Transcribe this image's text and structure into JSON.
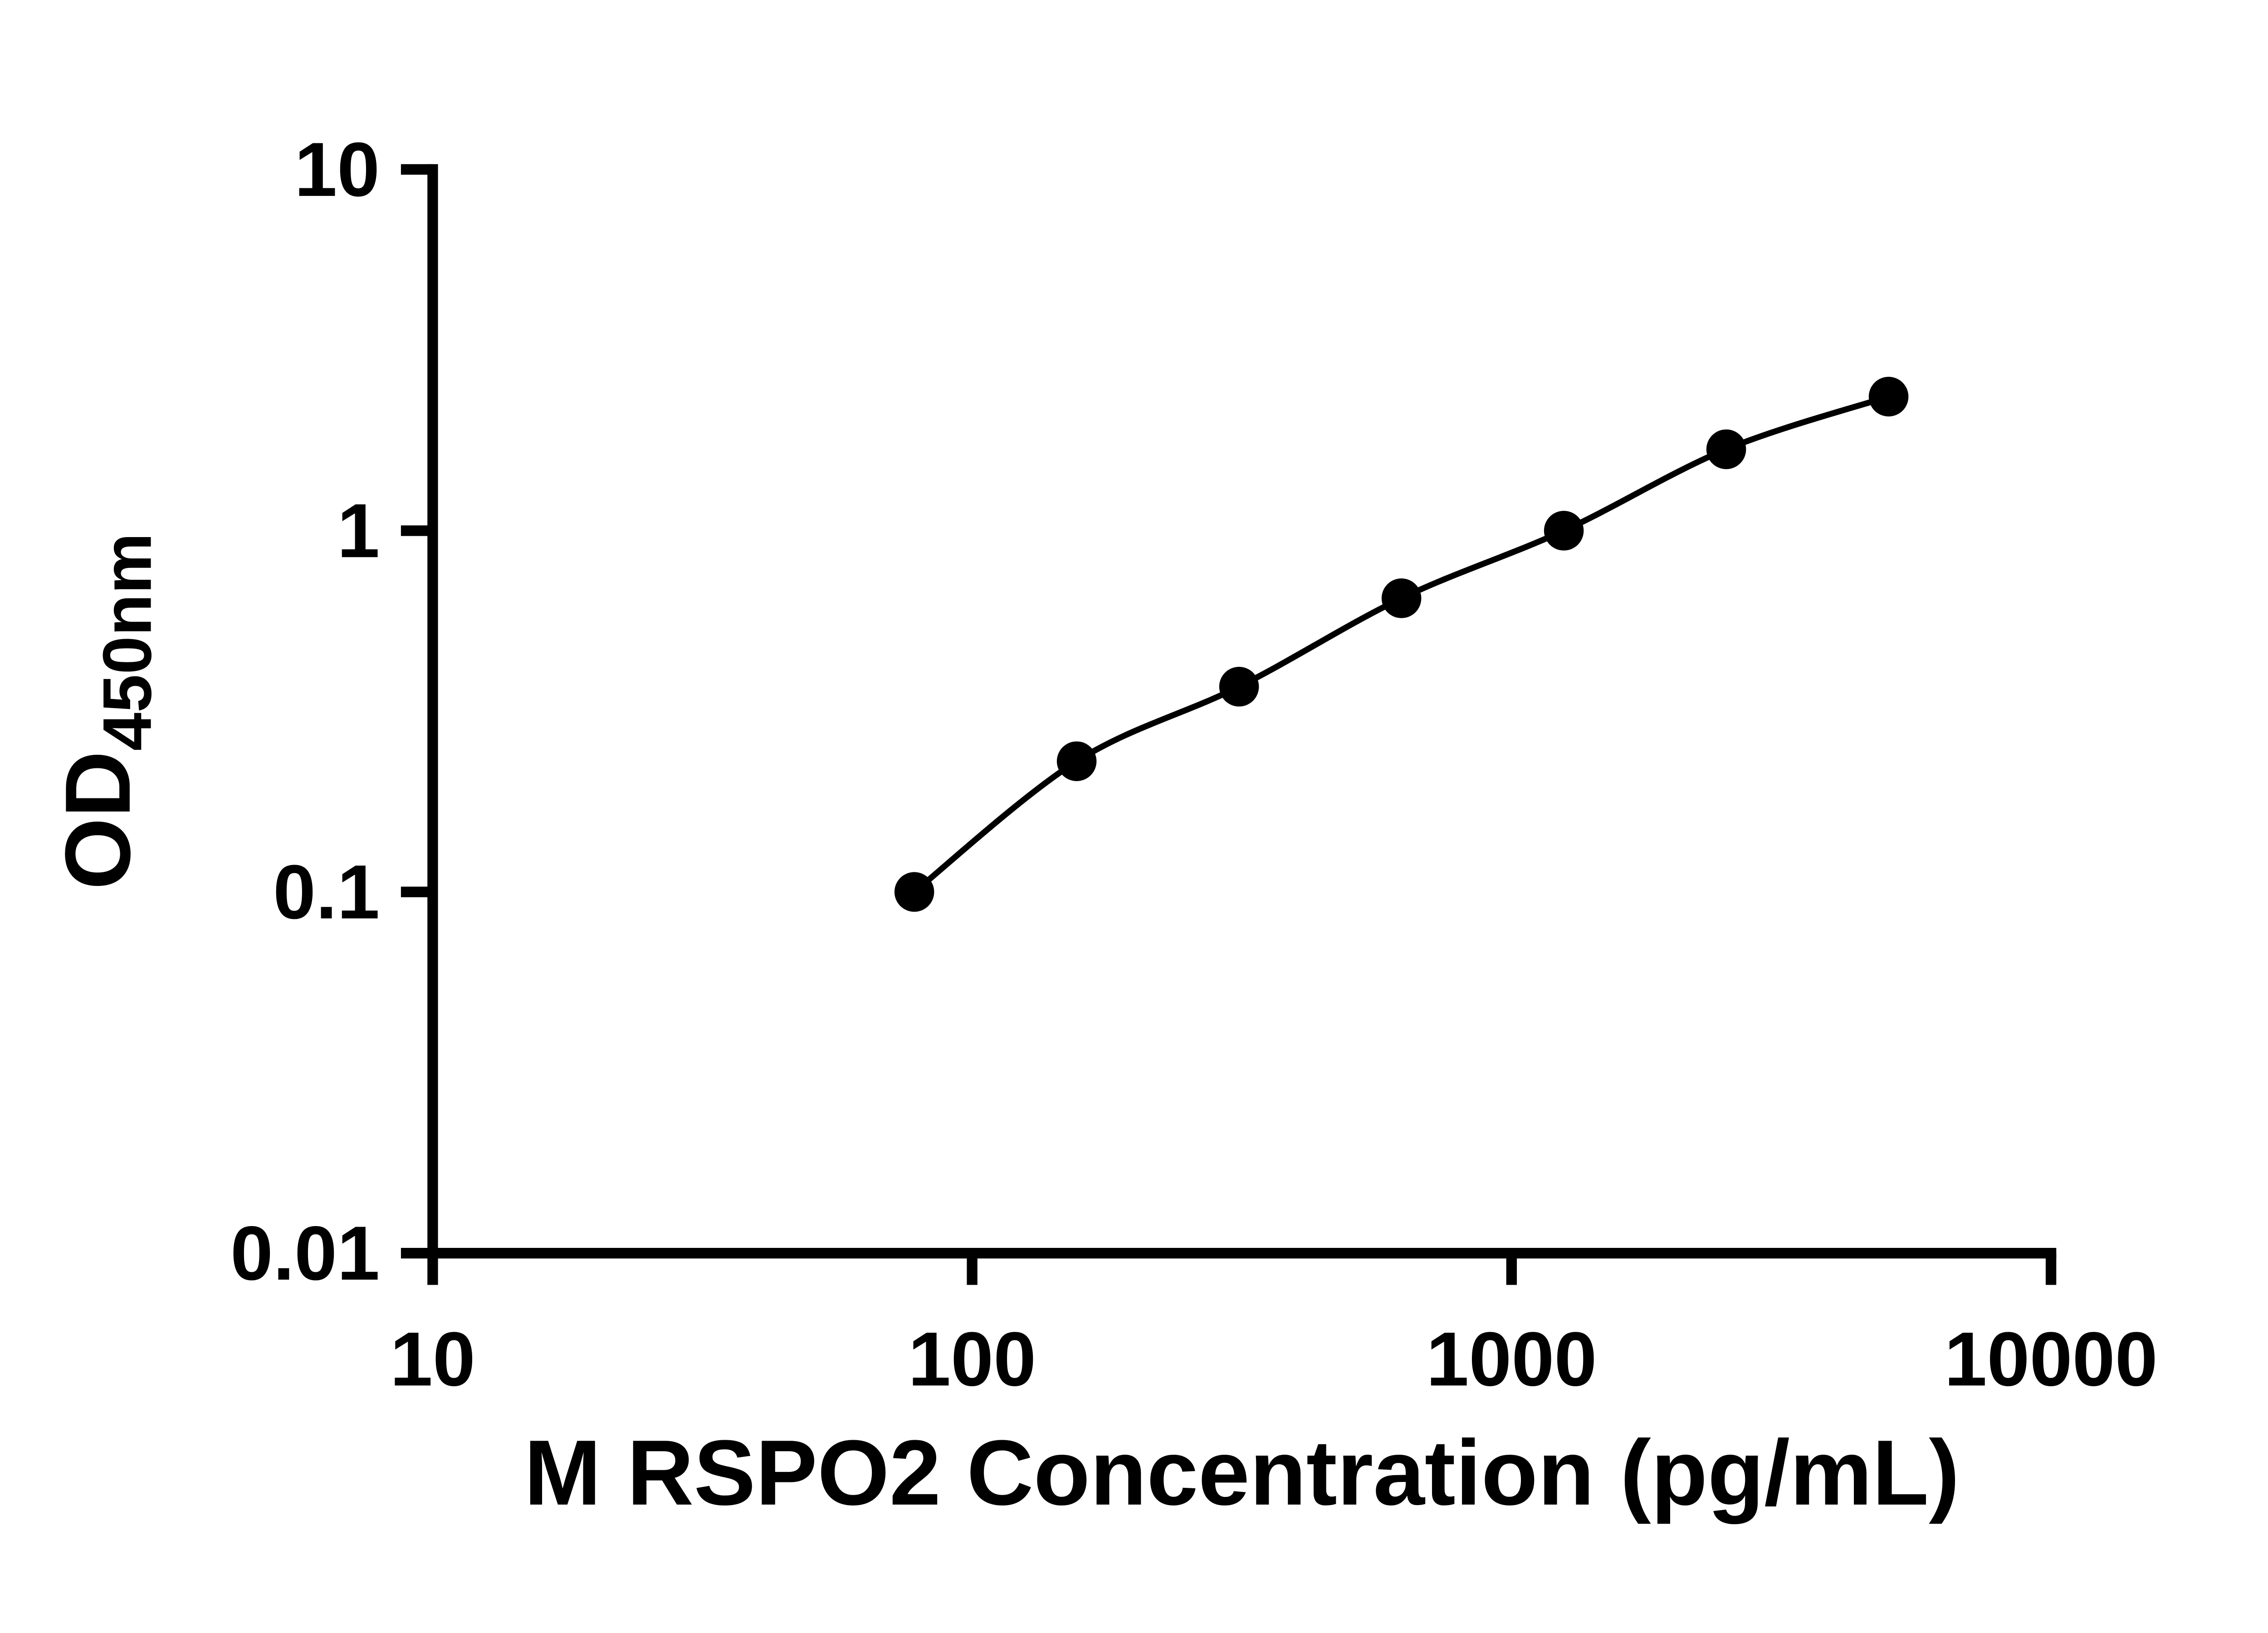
{
  "chart_data": {
    "type": "scatter",
    "title": "",
    "xlabel": "M RSPO2 Concentration (pg/mL)",
    "ylabel": "OD",
    "ylabel_subscript": "450nm",
    "x_scale": "log",
    "y_scale": "log",
    "xlim": [
      10,
      10000
    ],
    "ylim": [
      0.01,
      10
    ],
    "x_ticks": [
      10,
      100,
      1000,
      10000
    ],
    "x_tick_labels": [
      "10",
      "100",
      "1000",
      "10000"
    ],
    "y_ticks": [
      0.01,
      0.1,
      1,
      10
    ],
    "y_tick_labels": [
      "0.01",
      "0.1",
      "1",
      "10"
    ],
    "x": [
      78.13,
      156.25,
      312.5,
      625,
      1250,
      2500,
      5000
    ],
    "y": [
      0.1,
      0.23,
      0.37,
      0.65,
      1.0,
      1.68,
      2.35
    ],
    "marker": "circle",
    "line": "smooth",
    "color": "#000000",
    "axis_color": "#000000",
    "grid": false,
    "legend": "none",
    "background": "#ffffff"
  }
}
